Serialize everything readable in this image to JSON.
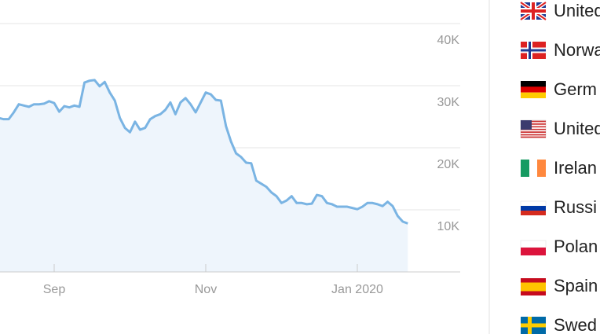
{
  "chart_data": {
    "type": "line",
    "categories": [
      null,
      null,
      null,
      null,
      null,
      null,
      null,
      null,
      null,
      null,
      null,
      "Sep",
      null,
      null,
      null,
      null,
      null,
      null,
      null,
      null,
      null,
      null,
      null,
      null,
      null,
      null,
      null,
      null,
      null,
      null,
      null,
      null,
      null,
      null,
      null,
      null,
      null,
      null,
      null,
      null,
      null,
      "Nov",
      null,
      null,
      null,
      null,
      null,
      null,
      null,
      null,
      null,
      null,
      null,
      null,
      null,
      null,
      null,
      null,
      null,
      null,
      null,
      null,
      null,
      null,
      null,
      null,
      null,
      null,
      null,
      null,
      null,
      "Jan 2020",
      null,
      null,
      null,
      null,
      null,
      null,
      null,
      null,
      null,
      null
    ],
    "series": [
      {
        "color": "#7ab4e3",
        "values": [
          24800,
          24600,
          24600,
          25700,
          27000,
          26800,
          26600,
          27000,
          27000,
          27100,
          27500,
          27200,
          25800,
          26700,
          26500,
          26800,
          26600,
          30500,
          30800,
          30900,
          29900,
          30600,
          28900,
          27600,
          24800,
          23200,
          22500,
          24200,
          22900,
          23200,
          24600,
          25100,
          25400,
          26100,
          27300,
          25400,
          27300,
          28000,
          27000,
          25700,
          27300,
          28900,
          28600,
          27700,
          27600,
          23500,
          21000,
          19100,
          18500,
          17600,
          17500,
          14700,
          14200,
          13700,
          12800,
          12200,
          11100,
          11500,
          12200,
          11100,
          11100,
          10900,
          11000,
          12400,
          12200,
          11100,
          10900,
          10500,
          10500,
          10500,
          10300,
          10100,
          10500,
          11100,
          11100,
          10900,
          10600,
          11300,
          10600,
          9000,
          8100,
          7800
        ]
      }
    ],
    "ylim": [
      0,
      40000
    ],
    "yticks": [
      {
        "value": 10000,
        "label": "10K"
      },
      {
        "value": 20000,
        "label": "20K"
      },
      {
        "value": 30000,
        "label": "30K"
      },
      {
        "value": 40000,
        "label": "40K"
      }
    ],
    "grid": true,
    "area_fill": "#eef5fc",
    "legend_items": [
      "United",
      "Norwa",
      "Germ",
      "United",
      "Irelan",
      "Russi",
      "Polan",
      "Spain",
      "Swed"
    ]
  }
}
